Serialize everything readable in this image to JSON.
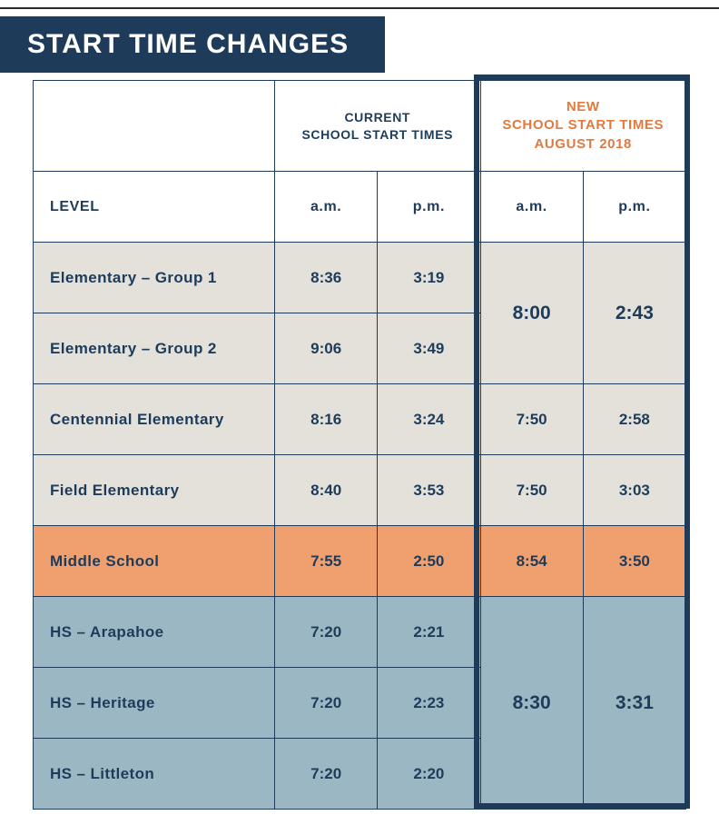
{
  "title": "START TIME CHANGES",
  "headers": {
    "current": "CURRENT\nSCHOOL START TIMES",
    "new": "NEW\nSCHOOL START TIMES\nAUGUST 2018",
    "level": "LEVEL",
    "am": "a.m.",
    "pm": "p.m."
  },
  "colors": {
    "navy": "#1e3c5a",
    "orange_text": "#e07a3f",
    "elem_bg": "#e3e1da",
    "ms_bg": "#efa06e",
    "hs_bg": "#9cb7c4",
    "white": "#ffffff"
  },
  "groups": [
    {
      "tint": "elem",
      "new_am": "8:00",
      "new_pm": "2:43",
      "rows": [
        {
          "label": "Elementary – Group 1",
          "am": "8:36",
          "pm": "3:19"
        },
        {
          "label": "Elementary – Group 2",
          "am": "9:06",
          "pm": "3:49"
        }
      ]
    },
    {
      "tint": "elem",
      "new_am": "7:50",
      "new_pm": "2:58",
      "rows": [
        {
          "label": "Centennial Elementary",
          "am": "8:16",
          "pm": "3:24"
        }
      ]
    },
    {
      "tint": "elem",
      "new_am": "7:50",
      "new_pm": "3:03",
      "rows": [
        {
          "label": "Field Elementary",
          "am": "8:40",
          "pm": "3:53"
        }
      ]
    },
    {
      "tint": "ms",
      "new_am": "8:54",
      "new_pm": "3:50",
      "rows": [
        {
          "label": "Middle School",
          "am": "7:55",
          "pm": "2:50"
        }
      ]
    },
    {
      "tint": "hs",
      "new_am": "8:30",
      "new_pm": "3:31",
      "rows": [
        {
          "label": "HS – Arapahoe",
          "am": "7:20",
          "pm": "2:21"
        },
        {
          "label": "HS – Heritage",
          "am": "7:20",
          "pm": "2:23"
        },
        {
          "label": "HS – Littleton",
          "am": "7:20",
          "pm": "2:20"
        }
      ]
    }
  ]
}
